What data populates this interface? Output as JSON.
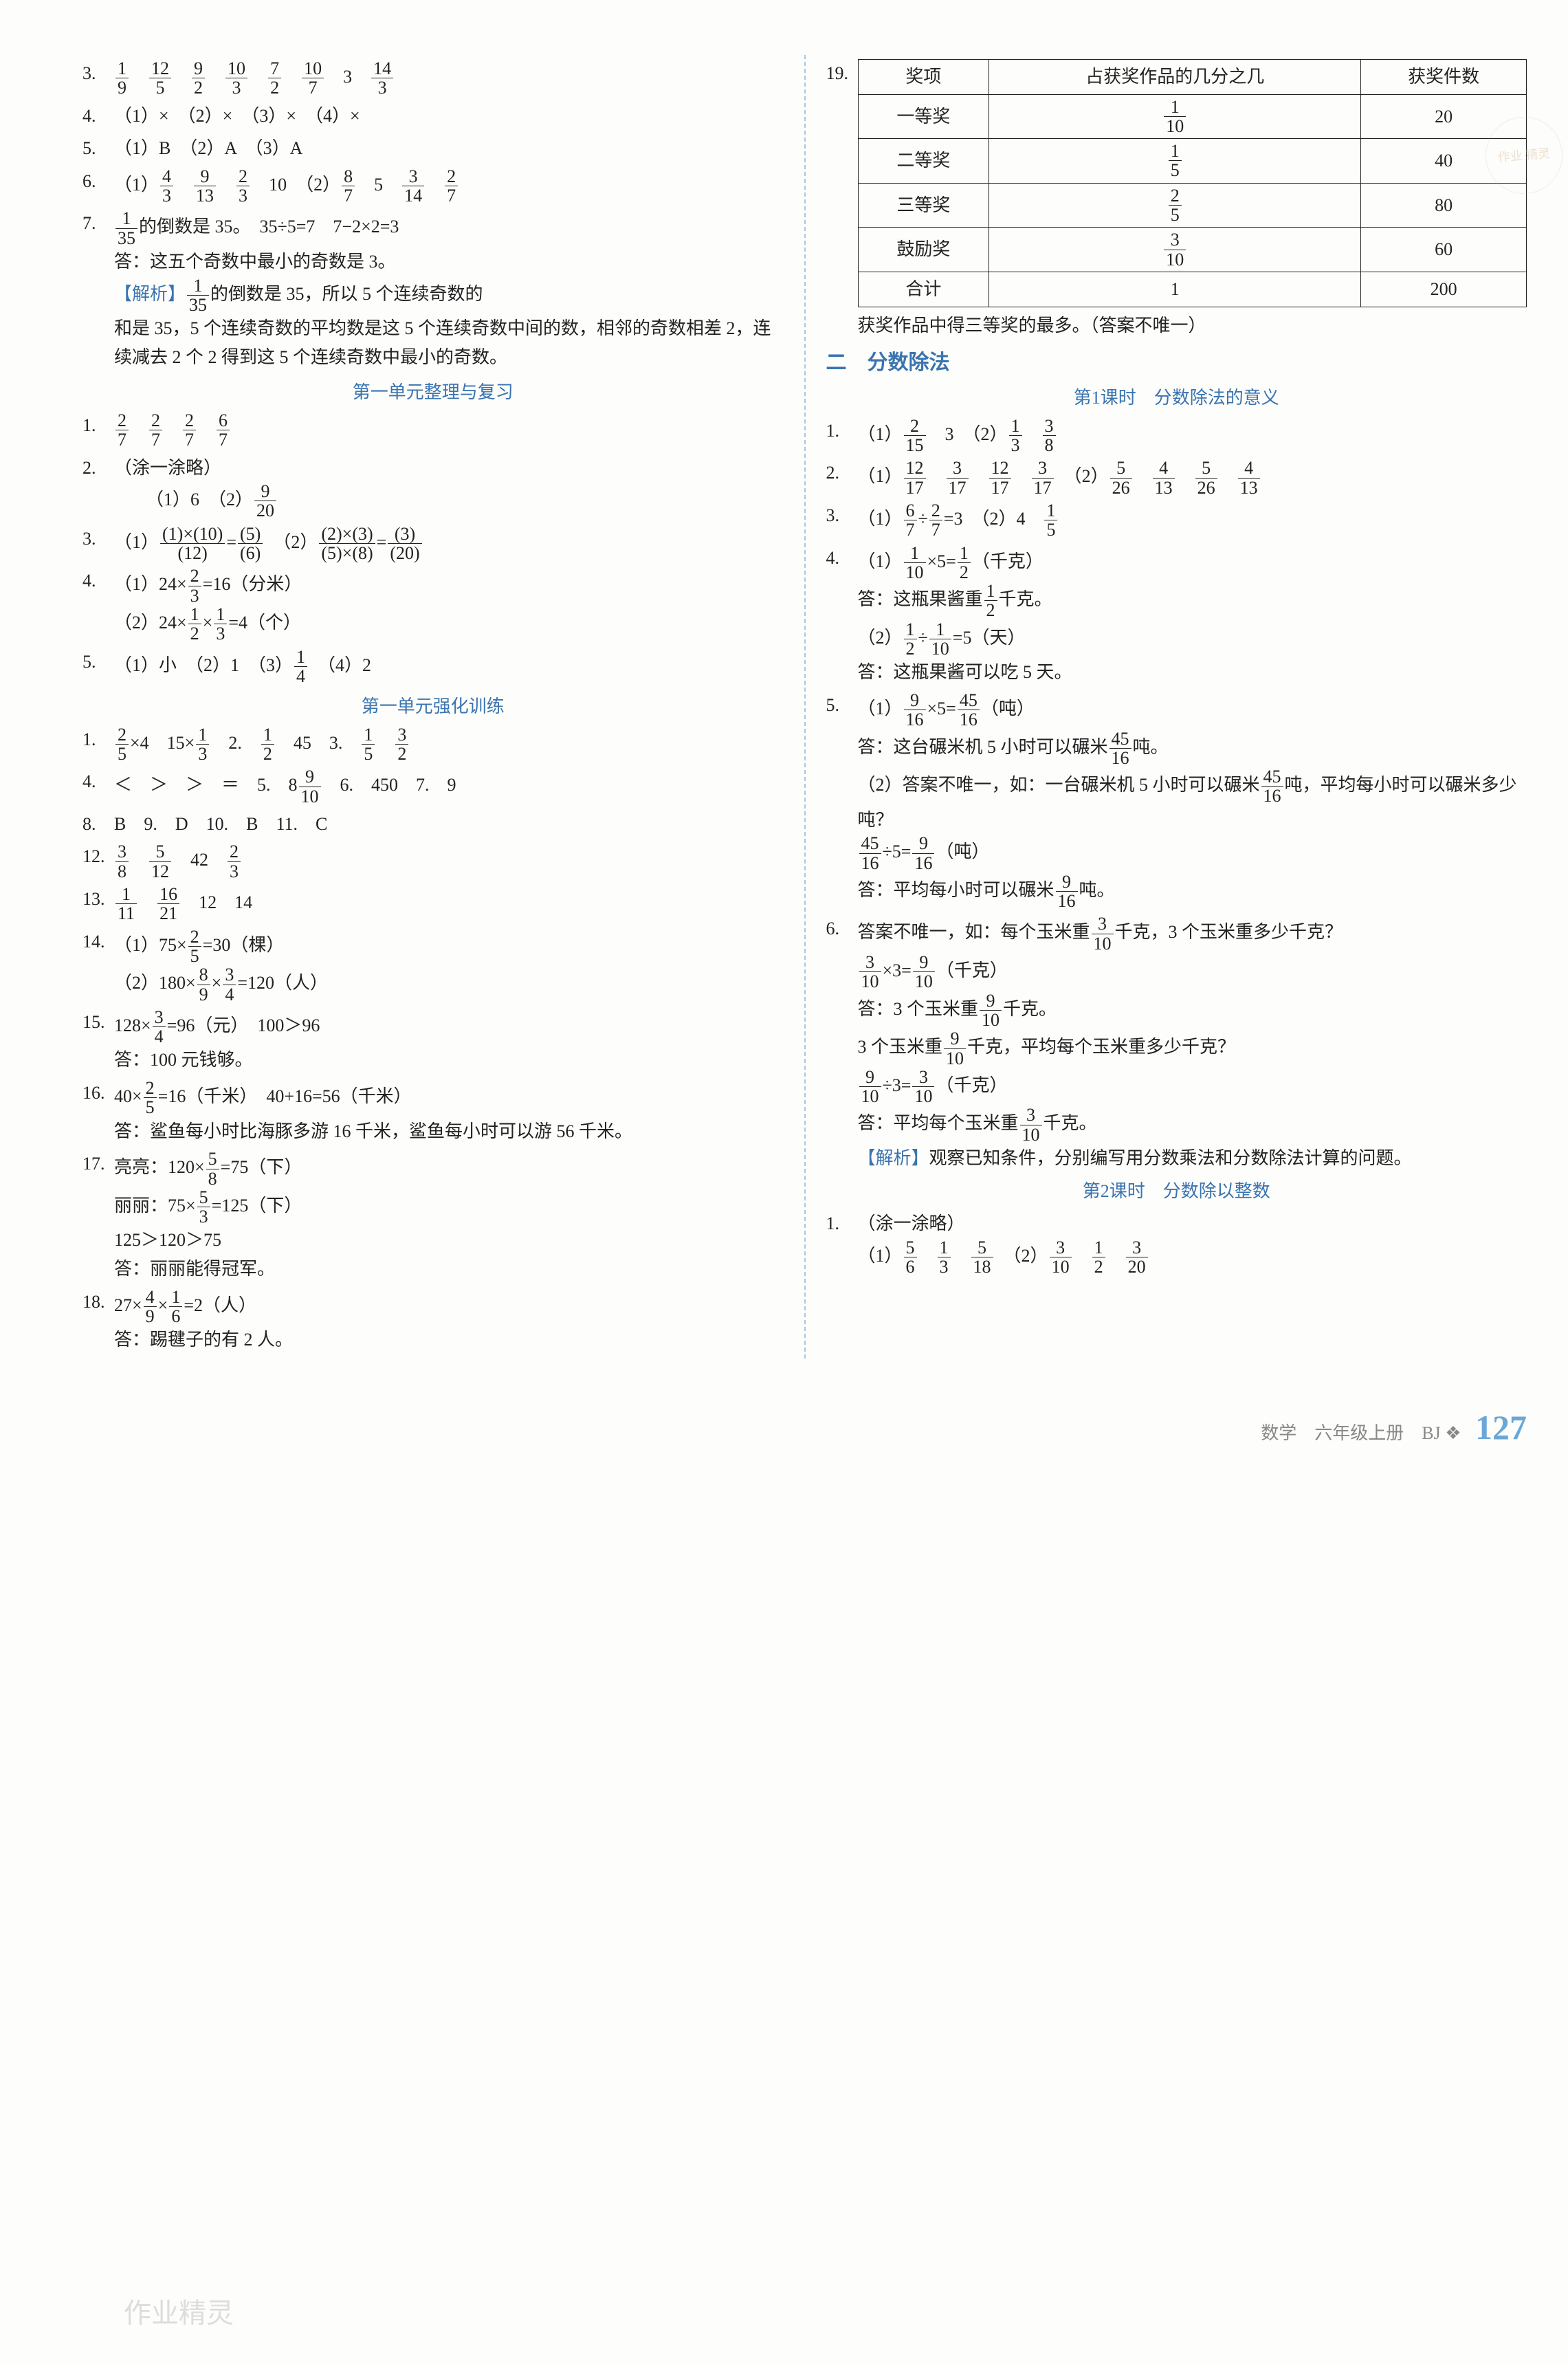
{
  "left": {
    "q3": {
      "num": "3.",
      "fracs": [
        "1/9",
        "12/5",
        "9/2",
        "10/3",
        "7/2",
        "10/7"
      ],
      "tail": "3",
      "tailfrac": "14/3"
    },
    "q4": {
      "num": "4.",
      "text": "（1）×　（2）×　（3）×　（4）×"
    },
    "q5": {
      "num": "5.",
      "text": "（1）B　（2）A　（3）A"
    },
    "q6": {
      "num": "6.",
      "p1label": "（1）",
      "p1fracs": [
        "4/3",
        "9/13",
        "2/3"
      ],
      "p1tail": "10",
      "p2label": "（2）",
      "p2fracs": [
        "8/7"
      ],
      "p2mid": "5",
      "p2fracs2": [
        "3/14",
        "2/7"
      ]
    },
    "q7": {
      "num": "7.",
      "line1a": "1/35",
      "line1b": "的倒数是 35。　35÷5=7　7−2×2=3",
      "ans": "答：这五个奇数中最小的奇数是 3。",
      "analysis_label": "【解析】",
      "analysis1a": "1/35",
      "analysis1b": "的倒数是 35，所以 5 个连续奇数的",
      "analysis2": "和是 35，5 个连续奇数的平均数是这 5 个连续奇数中间的数，相邻的奇数相差 2，连续减去 2 个 2 得到这 5 个连续奇数中最小的奇数。"
    },
    "unit_review": "第一单元整理与复习",
    "r1": {
      "num": "1.",
      "fracs": [
        "2/7",
        "2/7",
        "2/7",
        "6/7"
      ]
    },
    "r2": {
      "num": "2.",
      "text": "（涂一涂略）",
      "sub": "（1）6　（2）",
      "subfrac": "9/20"
    },
    "r3": {
      "num": "3.",
      "p1": "（1）",
      "f1": "(1)×(10)",
      "f1d": "(12)",
      "eq": "=",
      "f2": "(5)",
      "f2d": "(6)",
      "p2": "（2）",
      "f3": "(2)×(3)",
      "f3d": "(5)×(8)",
      "f4": "(3)",
      "f4d": "(20)"
    },
    "r4": {
      "num": "4.",
      "l1a": "（1）24×",
      "l1frac": "2/3",
      "l1b": "=16（分米）",
      "l2a": "（2）24×",
      "l2frac1": "1/2",
      "l2mid": "×",
      "l2frac2": "1/3",
      "l2b": "=4（个）"
    },
    "r5": {
      "num": "5.",
      "text": "（1）小　（2）1　（3）",
      "frac": "1/4",
      "tail": "　（4）2"
    },
    "unit_strength": "第一单元强化训练",
    "s1": {
      "num": "1.",
      "a": "2/5",
      "mid1": "×4　15×",
      "b": "1/3",
      "two": "　2.　",
      "c": "1/2",
      "mid2": "　45　3.　",
      "d": "1/5",
      "sp": "　",
      "e": "3/2"
    },
    "s4": {
      "num": "4.",
      "text": "＜　＞　＞　＝　5.　8",
      "frac": "9/10",
      "tail": "　6.　450　7.　9"
    },
    "s8": {
      "num": "8.",
      "text": "B　9.　D　10.　B　11.　C"
    },
    "s12": {
      "num": "12.",
      "fracs": [
        "3/8",
        "5/12"
      ],
      "mid": "　42　",
      "frac2": "2/3"
    },
    "s13": {
      "num": "13.",
      "fracs": [
        "1/11",
        "16/21"
      ],
      "tail": "　12　14"
    },
    "s14": {
      "num": "14.",
      "l1a": "（1）75×",
      "l1f": "2/5",
      "l1b": "=30（棵）",
      "l2a": "（2）180×",
      "l2f1": "8/9",
      "l2mid": "×",
      "l2f2": "3/4",
      "l2b": "=120（人）"
    },
    "s15": {
      "num": "15.",
      "a": "128×",
      "f": "3/4",
      "b": "=96（元）　100＞96",
      "ans": "答：100 元钱够。"
    },
    "s16": {
      "num": "16.",
      "a": "40×",
      "f": "2/5",
      "b": "=16（千米）　40+16=56（千米）",
      "ans": "答：鲨鱼每小时比海豚多游 16 千米，鲨鱼每小时可以游 56 千米。"
    },
    "s17": {
      "num": "17.",
      "l1a": "亮亮：120×",
      "l1f": "5/8",
      "l1b": "=75（下）",
      "l2a": "丽丽：75×",
      "l2f": "5/3",
      "l2b": "=125（下）",
      "l3": "125＞120＞75",
      "ans": "答：丽丽能得冠军。"
    },
    "s18": {
      "num": "18.",
      "a": "27×",
      "f1": "4/9",
      "mid": "×",
      "f2": "1/6",
      "b": "=2（人）",
      "ans": "答：踢毽子的有 2 人。"
    }
  },
  "right": {
    "q19num": "19.",
    "table": {
      "headers": [
        "奖项",
        "占获奖作品的几分之几",
        "获奖件数"
      ],
      "rows": [
        {
          "label": "一等奖",
          "frac": "1/10",
          "count": "20"
        },
        {
          "label": "二等奖",
          "frac": "1/5",
          "count": "40"
        },
        {
          "label": "三等奖",
          "frac": "2/5",
          "count": "80"
        },
        {
          "label": "鼓励奖",
          "frac": "3/10",
          "count": "60"
        },
        {
          "label": "合计",
          "frac_plain": "1",
          "count": "200"
        }
      ],
      "caption": "获奖作品中得三等奖的最多。（答案不唯一）"
    },
    "sec2_num": "二",
    "sec2_title": "分数除法",
    "lesson1": "第1课时　分数除法的意义",
    "d1": {
      "num": "1.",
      "p1": "（1）",
      "f1": "2/15",
      "mid": "　3　（2）",
      "f2": "1/3",
      "sp": "　",
      "f3": "3/8"
    },
    "d2": {
      "num": "2.",
      "p1": "（1）",
      "g": [
        "12/17",
        "3/17",
        "12/17",
        "3/17"
      ],
      "p2": "　（2）",
      "g2": [
        "5/26",
        "4/13",
        "5/26",
        "4/13"
      ]
    },
    "d3": {
      "num": "3.",
      "p1": "（1）",
      "f1": "6/7",
      "div": "÷",
      "f2": "2/7",
      "eq": "=3　（2）4　",
      "f3": "1/5"
    },
    "d4": {
      "num": "4.",
      "l1a": "（1）",
      "l1f1": "1/10",
      "l1mid": "×5=",
      "l1f2": "1/2",
      "l1b": "（千克）",
      "l1ans": "答：这瓶果酱重",
      "l1ansf": "1/2",
      "l1ansb": "千克。",
      "l2a": "（2）",
      "l2f1": "1/2",
      "l2div": "÷",
      "l2f2": "1/10",
      "l2b": "=5（天）",
      "l2ans": "答：这瓶果酱可以吃 5 天。"
    },
    "d5": {
      "num": "5.",
      "l1a": "（1）",
      "l1f1": "9/16",
      "l1mid": "×5=",
      "l1f2": "45/16",
      "l1b": "（吨）",
      "l1ans": "答：这台碾米机 5 小时可以碾米",
      "l1ansf": "45/16",
      "l1ansb": "吨。",
      "l2": "（2）答案不唯一，如：一台碾米机 5 小时可以碾米",
      "l2f": "45/16",
      "l2b": "吨，平均每小时可以碾米多少吨？",
      "l3f1": "45/16",
      "l3mid": "÷5=",
      "l3f2": "9/16",
      "l3b": "（吨）",
      "l3ans": "答：平均每小时可以碾米",
      "l3ansf": "9/16",
      "l3ansb": "吨。"
    },
    "d6": {
      "num": "6.",
      "q1a": "答案不唯一，如：每个玉米重",
      "q1f": "3/10",
      "q1b": "千克，3 个玉米重多少千克？",
      "e1f1": "3/10",
      "e1mid": "×3=",
      "e1f2": "9/10",
      "e1b": "（千克）",
      "a1": "答：3 个玉米重",
      "a1f": "9/10",
      "a1b": "千克。",
      "q2a": "3 个玉米重",
      "q2f": "9/10",
      "q2b": "千克，平均每个玉米重多少千克？",
      "e2f1": "9/10",
      "e2mid": "÷3=",
      "e2f2": "3/10",
      "e2b": "（千克）",
      "a2": "答：平均每个玉米重",
      "a2f": "3/10",
      "a2b": "千克。",
      "analysis_label": "【解析】",
      "analysis": "观察已知条件，分别编写用分数乘法和分数除法计算的问题。"
    },
    "lesson2": "第2课时　分数除以整数",
    "l2_1": {
      "num": "1.",
      "text": "（涂一涂略）",
      "p1": "（1）",
      "g1": [
        "5/6",
        "1/3",
        "5/18"
      ],
      "p2": "　（2）",
      "g2": [
        "3/10",
        "1/2",
        "3/20"
      ]
    }
  },
  "footer": {
    "label": "数学　六年级上册　BJ",
    "deco": "❖",
    "page": "127"
  },
  "watermark": "作业精灵",
  "side_stamp": "作业\n精灵"
}
